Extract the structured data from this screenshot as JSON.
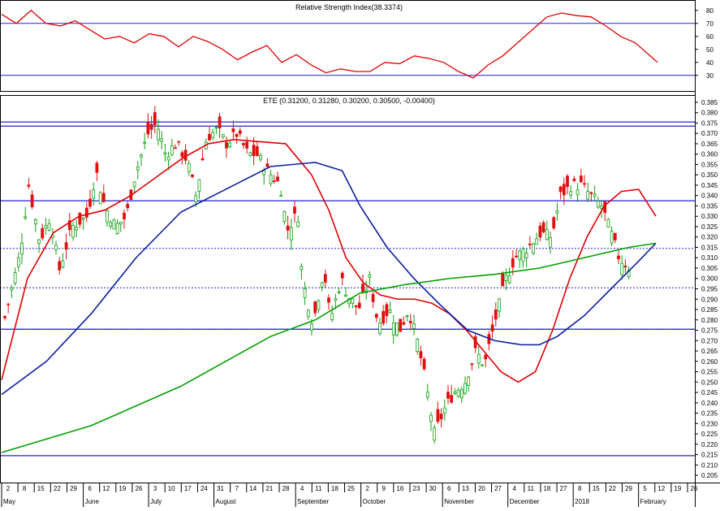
{
  "rsi_panel": {
    "title": "Relative Strength Index(38.3374)",
    "y_ticks": [
      80,
      70,
      60,
      50,
      40,
      30
    ],
    "levels": [
      70,
      30
    ],
    "ylim": [
      18,
      88
    ]
  },
  "price_panel": {
    "title": "ETE (0.31200, 0.31280, 0.30200, 0.30500, -0.00400)",
    "y_ticks": [
      "0.385",
      "0.380",
      "0.375",
      "0.370",
      "0.365",
      "0.360",
      "0.355",
      "0.350",
      "0.345",
      "0.340",
      "0.335",
      "0.330",
      "0.325",
      "0.320",
      "0.315",
      "0.310",
      "0.305",
      "0.300",
      "0.295",
      "0.290",
      "0.285",
      "0.280",
      "0.275",
      "0.270",
      "0.265",
      "0.260",
      "0.255",
      "0.250",
      "0.245",
      "0.240",
      "0.235",
      "0.230",
      "0.225",
      "0.220",
      "0.215",
      "0.210",
      "0.205"
    ],
    "ylim": [
      0.2015,
      0.3885
    ],
    "h_lines_solid": [
      0.3755,
      0.3735,
      0.3375,
      0.2755,
      0.2145
    ],
    "h_lines_dashed": [
      0.3145,
      0.2955,
      0.2755
    ]
  },
  "x_axis": {
    "day_ticks": [
      "2",
      "8",
      "15",
      "22",
      "29",
      "6",
      "12",
      "19",
      "26",
      "3",
      "10",
      "17",
      "24",
      "31",
      "7",
      "14",
      "21",
      "28",
      "4",
      "11",
      "18",
      "25",
      "2",
      "9",
      "16",
      "23",
      "30",
      "6",
      "13",
      "20",
      "27",
      "4",
      "11",
      "18",
      "27",
      "8",
      "15",
      "22",
      "29",
      "5",
      "12",
      "19",
      "26"
    ],
    "month_labels": [
      "May",
      "June",
      "July",
      "August",
      "September",
      "October",
      "November",
      "December",
      "2018",
      "February"
    ]
  },
  "chart_data": {
    "type": "candlestick",
    "title": "ETE (0.31200, 0.31280, 0.30200, 0.30500, -0.00400)",
    "last_bar": {
      "open": 0.312,
      "high": 0.3128,
      "low": 0.302,
      "close": 0.305,
      "change": -0.004
    },
    "x_start": "2017-05-01",
    "x_end": "2018-02-28",
    "ylim": [
      0.2015,
      0.3885
    ],
    "price_key_points": [
      [
        "2017-05-01",
        0.281
      ],
      [
        "2017-05-08",
        0.312
      ],
      [
        "2017-05-12",
        0.345
      ],
      [
        "2017-05-17",
        0.318
      ],
      [
        "2017-05-22",
        0.33
      ],
      [
        "2017-05-26",
        0.304
      ],
      [
        "2017-06-01",
        0.325
      ],
      [
        "2017-06-08",
        0.33
      ],
      [
        "2017-06-12",
        0.352
      ],
      [
        "2017-06-16",
        0.335
      ],
      [
        "2017-06-21",
        0.325
      ],
      [
        "2017-06-26",
        0.33
      ],
      [
        "2017-06-30",
        0.35
      ],
      [
        "2017-07-06",
        0.37
      ],
      [
        "2017-07-10",
        0.375
      ],
      [
        "2017-07-14",
        0.36
      ],
      [
        "2017-07-19",
        0.365
      ],
      [
        "2017-07-24",
        0.357
      ],
      [
        "2017-07-28",
        0.34
      ],
      [
        "2017-08-02",
        0.368
      ],
      [
        "2017-08-07",
        0.372
      ],
      [
        "2017-08-11",
        0.365
      ],
      [
        "2017-08-16",
        0.37
      ],
      [
        "2017-08-21",
        0.36
      ],
      [
        "2017-08-25",
        0.36
      ],
      [
        "2017-08-30",
        0.352
      ],
      [
        "2017-09-05",
        0.345
      ],
      [
        "2017-09-08",
        0.323
      ],
      [
        "2017-09-13",
        0.332
      ],
      [
        "2017-09-15",
        0.3
      ],
      [
        "2017-09-20",
        0.278
      ],
      [
        "2017-09-25",
        0.305
      ],
      [
        "2017-09-28",
        0.28
      ],
      [
        "2017-10-03",
        0.3
      ],
      [
        "2017-10-06",
        0.292
      ],
      [
        "2017-10-11",
        0.285
      ],
      [
        "2017-10-16",
        0.3
      ],
      [
        "2017-10-20",
        0.278
      ],
      [
        "2017-10-25",
        0.285
      ],
      [
        "2017-10-30",
        0.275
      ],
      [
        "2017-11-03",
        0.285
      ],
      [
        "2017-11-07",
        0.27
      ],
      [
        "2017-11-10",
        0.255
      ],
      [
        "2017-11-15",
        0.225
      ],
      [
        "2017-11-20",
        0.238
      ],
      [
        "2017-11-24",
        0.245
      ],
      [
        "2017-11-29",
        0.25
      ],
      [
        "2017-12-04",
        0.265
      ],
      [
        "2017-12-08",
        0.258
      ],
      [
        "2017-12-13",
        0.28
      ],
      [
        "2017-12-18",
        0.3
      ],
      [
        "2017-12-22",
        0.31
      ],
      [
        "2017-12-28",
        0.315
      ],
      [
        "2018-01-03",
        0.322
      ],
      [
        "2018-01-08",
        0.32
      ],
      [
        "2018-01-12",
        0.34
      ],
      [
        "2018-01-17",
        0.345
      ],
      [
        "2018-01-22",
        0.345
      ],
      [
        "2018-01-26",
        0.34
      ],
      [
        "2018-01-31",
        0.335
      ],
      [
        "2018-02-05",
        0.32
      ],
      [
        "2018-02-08",
        0.31
      ],
      [
        "2018-02-13",
        0.305
      ]
    ],
    "series": [
      {
        "name": "RSI",
        "color": "#e00000",
        "values": [
          [
            0,
            77
          ],
          [
            2,
            70
          ],
          [
            4,
            80
          ],
          [
            6,
            70
          ],
          [
            8,
            68
          ],
          [
            10,
            72
          ],
          [
            12,
            65
          ],
          [
            14,
            58
          ],
          [
            16,
            60
          ],
          [
            18,
            55
          ],
          [
            20,
            62
          ],
          [
            22,
            60
          ],
          [
            24,
            52
          ],
          [
            26,
            60
          ],
          [
            28,
            56
          ],
          [
            30,
            50
          ],
          [
            32,
            42
          ],
          [
            34,
            48
          ],
          [
            36,
            53
          ],
          [
            38,
            40
          ],
          [
            40,
            46
          ],
          [
            42,
            38
          ],
          [
            44,
            32
          ],
          [
            46,
            35
          ],
          [
            48,
            33
          ],
          [
            50,
            33
          ],
          [
            52,
            40
          ],
          [
            54,
            39
          ],
          [
            56,
            45
          ],
          [
            58,
            43
          ],
          [
            60,
            40
          ],
          [
            62,
            33
          ],
          [
            64,
            28
          ],
          [
            66,
            38
          ],
          [
            68,
            45
          ],
          [
            70,
            55
          ],
          [
            72,
            65
          ],
          [
            74,
            75
          ],
          [
            76,
            78
          ],
          [
            78,
            76
          ],
          [
            80,
            75
          ],
          [
            82,
            68
          ],
          [
            84,
            60
          ],
          [
            86,
            55
          ],
          [
            88,
            45
          ],
          [
            89,
            40
          ]
        ]
      },
      {
        "name": "MA short (red)",
        "color": "#e00000",
        "values": [
          [
            0,
            0.251
          ],
          [
            3,
            0.3
          ],
          [
            6,
            0.322
          ],
          [
            9,
            0.33
          ],
          [
            12,
            0.333
          ],
          [
            15,
            0.34
          ],
          [
            18,
            0.349
          ],
          [
            21,
            0.358
          ],
          [
            24,
            0.365
          ],
          [
            27,
            0.367
          ],
          [
            30,
            0.366
          ],
          [
            33,
            0.365
          ],
          [
            36,
            0.35
          ],
          [
            38,
            0.333
          ],
          [
            40,
            0.31
          ],
          [
            42,
            0.298
          ],
          [
            44,
            0.292
          ],
          [
            46,
            0.29
          ],
          [
            48,
            0.29
          ],
          [
            50,
            0.288
          ],
          [
            52,
            0.283
          ],
          [
            54,
            0.275
          ],
          [
            56,
            0.265
          ],
          [
            58,
            0.255
          ],
          [
            60,
            0.25
          ],
          [
            62,
            0.255
          ],
          [
            64,
            0.275
          ],
          [
            66,
            0.3
          ],
          [
            68,
            0.32
          ],
          [
            70,
            0.335
          ],
          [
            72,
            0.342
          ],
          [
            74,
            0.343
          ],
          [
            76,
            0.33
          ]
        ]
      },
      {
        "name": "MA medium (blue)",
        "color": "#0a1ea0",
        "values": [
          [
            0,
            0.244
          ],
          [
            5,
            0.26
          ],
          [
            10,
            0.283
          ],
          [
            15,
            0.31
          ],
          [
            20,
            0.332
          ],
          [
            25,
            0.343
          ],
          [
            30,
            0.354
          ],
          [
            35,
            0.356
          ],
          [
            38,
            0.352
          ],
          [
            40,
            0.335
          ],
          [
            43,
            0.315
          ],
          [
            46,
            0.3
          ],
          [
            49,
            0.287
          ],
          [
            52,
            0.275
          ],
          [
            55,
            0.27
          ],
          [
            58,
            0.268
          ],
          [
            60,
            0.268
          ],
          [
            62,
            0.272
          ],
          [
            65,
            0.282
          ],
          [
            68,
            0.295
          ],
          [
            71,
            0.308
          ],
          [
            73,
            0.317
          ]
        ]
      },
      {
        "name": "MA long (green)",
        "color": "#00a000",
        "values": [
          [
            0,
            0.216
          ],
          [
            10,
            0.229
          ],
          [
            20,
            0.248
          ],
          [
            30,
            0.272
          ],
          [
            35,
            0.28
          ],
          [
            40,
            0.293
          ],
          [
            45,
            0.297
          ],
          [
            50,
            0.3
          ],
          [
            55,
            0.302
          ],
          [
            60,
            0.305
          ],
          [
            65,
            0.31
          ],
          [
            70,
            0.315
          ],
          [
            73,
            0.317
          ]
        ]
      }
    ]
  }
}
